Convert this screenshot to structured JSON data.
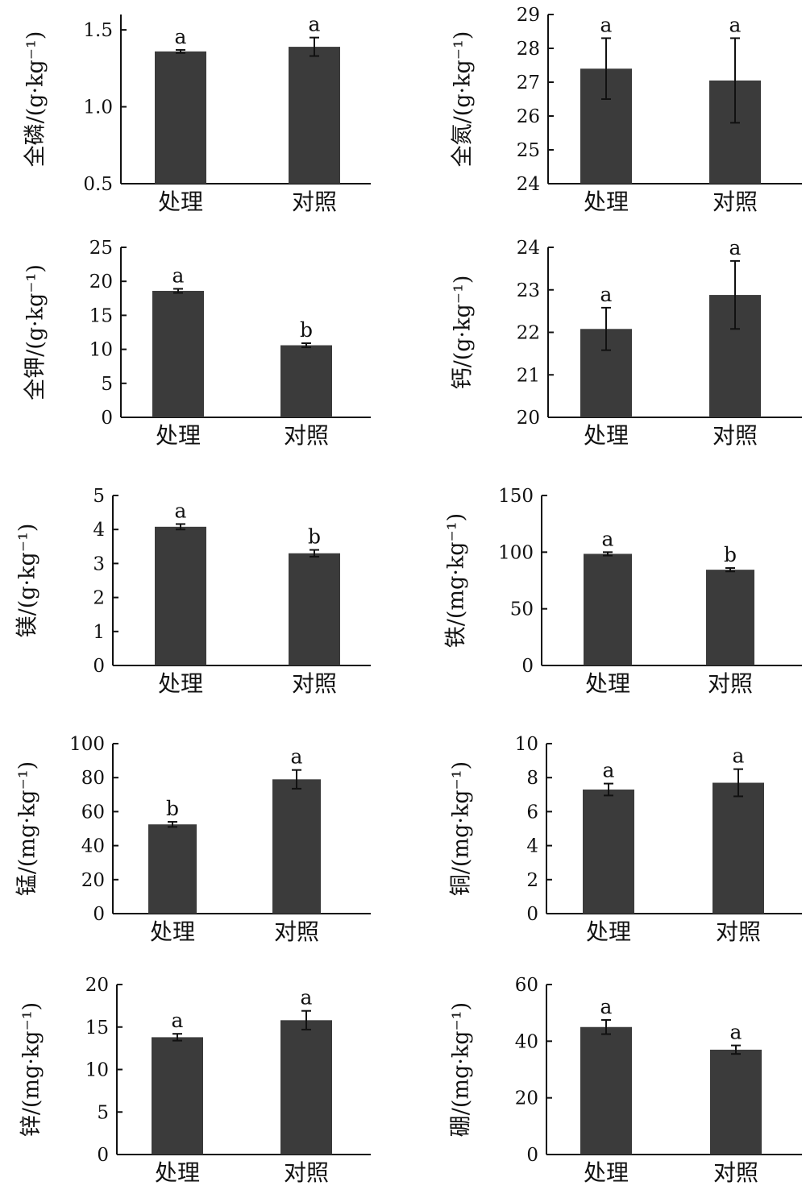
{
  "colors": {
    "bar": "#3b3b3b",
    "axis": "#111111",
    "text": "#111111"
  },
  "chart_data": [
    {
      "type": "bar",
      "ylabel": "全磷/(g·kg⁻¹)",
      "categories": [
        "处理",
        "对照"
      ],
      "values": [
        1.36,
        1.39
      ],
      "errors": [
        0.01,
        0.06
      ],
      "sig": [
        "a",
        "a"
      ],
      "ylim": [
        0.5,
        1.6
      ],
      "yticks": [
        "0.5",
        "1.0",
        "1.5"
      ],
      "grid": false
    },
    {
      "type": "bar",
      "ylabel": "全氮/(g·kg⁻¹)",
      "categories": [
        "处理",
        "对照"
      ],
      "values": [
        27.4,
        27.05
      ],
      "errors": [
        0.9,
        1.25
      ],
      "sig": [
        "a",
        "a"
      ],
      "ylim": [
        24,
        29
      ],
      "yticks": [
        "24",
        "25",
        "26",
        "27",
        "28",
        "29"
      ],
      "grid": false
    },
    {
      "type": "bar",
      "ylabel": "全钾/(g·kg⁻¹)",
      "categories": [
        "处理",
        "对照"
      ],
      "values": [
        18.6,
        10.6
      ],
      "errors": [
        0.3,
        0.3
      ],
      "sig": [
        "a",
        "b"
      ],
      "ylim": [
        0,
        25
      ],
      "yticks": [
        "0",
        "5",
        "10",
        "15",
        "20",
        "25"
      ],
      "grid": false
    },
    {
      "type": "bar",
      "ylabel": "钙/(g·kg⁻¹)",
      "categories": [
        "处理",
        "对照"
      ],
      "values": [
        22.08,
        22.88
      ],
      "errors": [
        0.5,
        0.8
      ],
      "sig": [
        "a",
        "a"
      ],
      "ylim": [
        20,
        24
      ],
      "yticks": [
        "20",
        "21",
        "22",
        "23",
        "24"
      ],
      "grid": false
    },
    {
      "type": "bar",
      "ylabel": "镁/(g·kg⁻¹)",
      "categories": [
        "处理",
        "对照"
      ],
      "values": [
        4.08,
        3.3
      ],
      "errors": [
        0.08,
        0.1
      ],
      "sig": [
        "a",
        "b"
      ],
      "ylim": [
        0,
        5
      ],
      "yticks": [
        "0",
        "1",
        "2",
        "3",
        "4",
        "5"
      ],
      "grid": false
    },
    {
      "type": "bar",
      "ylabel": "铁/(mg·kg⁻¹)",
      "categories": [
        "处理",
        "对照"
      ],
      "values": [
        98.5,
        84.5
      ],
      "errors": [
        1.5,
        1.5
      ],
      "sig": [
        "a",
        "b"
      ],
      "ylim": [
        0,
        150
      ],
      "yticks": [
        "0",
        "50",
        "100",
        "150"
      ],
      "grid": false
    },
    {
      "type": "bar",
      "ylabel": "锰/(mg·kg⁻¹)",
      "categories": [
        "处理",
        "对照"
      ],
      "values": [
        52.5,
        79
      ],
      "errors": [
        1.5,
        5.5
      ],
      "sig": [
        "b",
        "a"
      ],
      "ylim": [
        0,
        100
      ],
      "yticks": [
        "0",
        "20",
        "40",
        "60",
        "80",
        "100"
      ],
      "grid": false
    },
    {
      "type": "bar",
      "ylabel": "铜/(mg·kg⁻¹)",
      "categories": [
        "处理",
        "对照"
      ],
      "values": [
        7.3,
        7.7
      ],
      "errors": [
        0.35,
        0.8
      ],
      "sig": [
        "a",
        "a"
      ],
      "ylim": [
        0,
        10
      ],
      "yticks": [
        "0",
        "2",
        "4",
        "6",
        "8",
        "10"
      ],
      "grid": false
    },
    {
      "type": "bar",
      "ylabel": "锌/(mg·kg⁻¹)",
      "categories": [
        "处理",
        "对照"
      ],
      "values": [
        13.8,
        15.8
      ],
      "errors": [
        0.4,
        1.1
      ],
      "sig": [
        "a",
        "a"
      ],
      "ylim": [
        0,
        20
      ],
      "yticks": [
        "0",
        "5",
        "10",
        "15",
        "20"
      ],
      "grid": false
    },
    {
      "type": "bar",
      "ylabel": "硼/(mg·kg⁻¹)",
      "categories": [
        "处理",
        "对照"
      ],
      "values": [
        45,
        37
      ],
      "errors": [
        2.5,
        1.5
      ],
      "sig": [
        "a",
        "a"
      ],
      "ylim": [
        0,
        60
      ],
      "yticks": [
        "0",
        "20",
        "40",
        "60"
      ],
      "grid": false
    }
  ]
}
